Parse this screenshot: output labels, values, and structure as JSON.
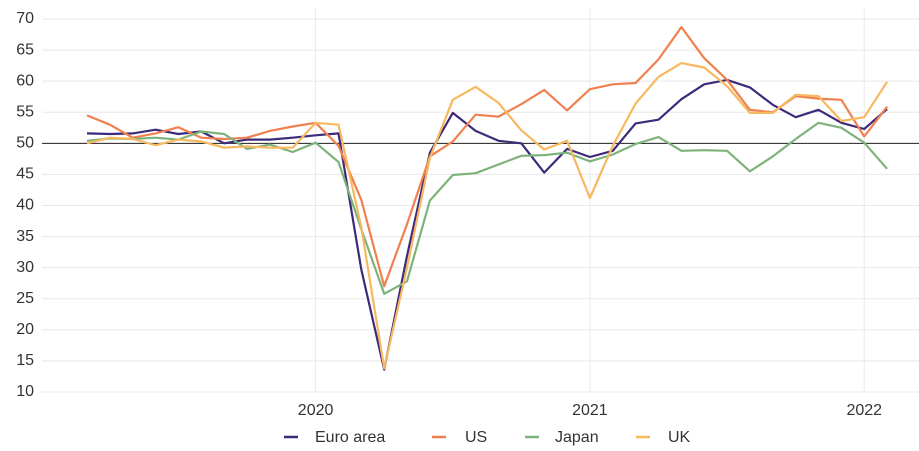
{
  "chart_data": {
    "type": "line",
    "categories": [
      null,
      null,
      null,
      null,
      null,
      null,
      null,
      null,
      null,
      null,
      "2020",
      null,
      null,
      null,
      null,
      null,
      null,
      null,
      null,
      null,
      null,
      null,
      "2021",
      null,
      null,
      null,
      null,
      null,
      null,
      null,
      null,
      null,
      null,
      null,
      "2022",
      null
    ],
    "series": [
      {
        "name": "Euro area",
        "color": "#3d2a7a",
        "values": [
          51.6,
          51.5,
          51.6,
          52.2,
          51.5,
          51.9,
          50.0,
          50.6,
          50.6,
          50.9,
          51.3,
          51.6,
          29.7,
          13.6,
          31.9,
          48.5,
          54.9,
          52.0,
          50.4,
          50.0,
          45.3,
          49.1,
          47.8,
          48.8,
          53.2,
          53.8,
          57.1,
          59.5,
          60.2,
          59.0,
          56.2,
          54.2,
          55.4,
          53.3,
          52.3,
          55.5
        ]
      },
      {
        "name": "US",
        "color": "#f08050",
        "values": [
          54.5,
          53.0,
          50.9,
          51.6,
          52.6,
          50.9,
          50.7,
          50.9,
          52.0,
          52.7,
          53.3,
          49.6,
          40.9,
          27.0,
          37.0,
          47.9,
          50.3,
          54.6,
          54.3,
          56.3,
          58.6,
          55.3,
          58.7,
          59.5,
          59.7,
          63.5,
          68.7,
          63.7,
          60.2,
          55.4,
          55.0,
          57.6,
          57.2,
          57.0,
          51.1,
          55.9
        ]
      },
      {
        "name": "Japan",
        "color": "#7db37a",
        "values": [
          50.4,
          50.8,
          50.7,
          50.9,
          50.6,
          51.9,
          51.5,
          49.1,
          49.8,
          48.6,
          50.1,
          47.0,
          36.2,
          25.8,
          27.8,
          40.8,
          44.9,
          45.2,
          46.6,
          48.0,
          48.1,
          48.5,
          47.1,
          48.2,
          49.9,
          51.0,
          48.8,
          48.9,
          48.8,
          45.5,
          47.9,
          50.7,
          53.3,
          52.5,
          50.1,
          45.9
        ]
      },
      {
        "name": "UK",
        "color": "#f7b860",
        "values": [
          50.0,
          50.9,
          50.7,
          49.7,
          50.6,
          50.3,
          49.3,
          49.5,
          49.3,
          49.3,
          53.3,
          53.0,
          36.5,
          13.8,
          30.0,
          47.7,
          57.0,
          59.1,
          56.5,
          52.1,
          49.0,
          50.4,
          41.2,
          49.6,
          56.4,
          60.7,
          62.9,
          62.2,
          59.2,
          54.9,
          54.9,
          57.8,
          57.6,
          53.6,
          54.2,
          59.9
        ]
      }
    ],
    "ylim": [
      10,
      70
    ],
    "yticks": [
      10,
      15,
      20,
      25,
      30,
      35,
      40,
      45,
      50,
      55,
      60,
      65,
      70
    ],
    "reference_line": 50,
    "grid": true,
    "legend": "bottom"
  }
}
